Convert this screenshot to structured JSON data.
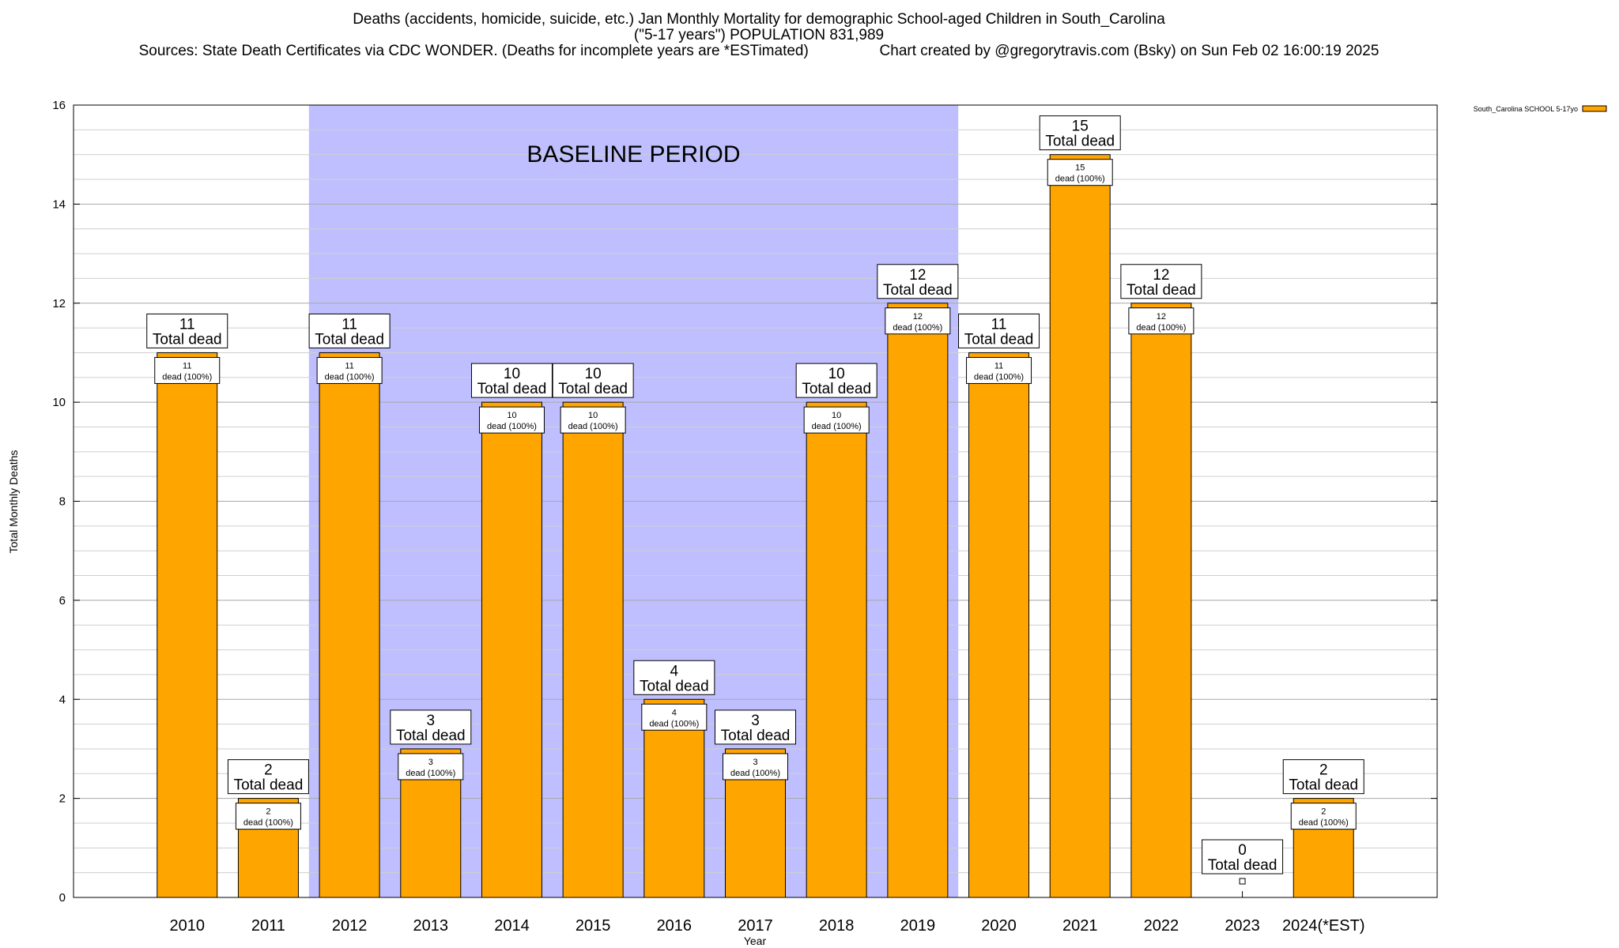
{
  "chart_data": {
    "type": "bar",
    "title_line1": "Deaths (accidents, homicide, suicide, etc.) Jan Monthly Mortality for demographic School-aged Children in South_Carolina",
    "title_line2": "(\"5-17 years\") POPULATION 831,989",
    "title_line3": "Sources: State Death Certificates via CDC WONDER. (Deaths for incomplete years are *ESTimated)                 Chart created by @gregorytravis.com (Bsky) on Sun Feb 02 16:00:19 2025",
    "xlabel": "Year",
    "ylabel": "Total Monthly Deaths",
    "ylim": [
      0,
      16
    ],
    "yticks": [
      0,
      2,
      4,
      6,
      8,
      10,
      12,
      14,
      16
    ],
    "grid": true,
    "legend_position": "top-right",
    "baseline_label": "BASELINE PERIOD",
    "baseline_range": [
      "2012",
      "2019"
    ],
    "total_label_suffix": "Total dead",
    "inner_label_suffix": "dead (100%)",
    "categories": [
      "2010",
      "2011",
      "2012",
      "2013",
      "2014",
      "2015",
      "2016",
      "2017",
      "2018",
      "2019",
      "2020",
      "2021",
      "2022",
      "2023",
      "2024(*EST)"
    ],
    "series": [
      {
        "name": "South_Carolina SCHOOL 5-17yo",
        "color": "#FFA500",
        "values": [
          11,
          2,
          11,
          3,
          10,
          10,
          4,
          3,
          10,
          12,
          11,
          15,
          12,
          0,
          2
        ]
      }
    ],
    "colors": {
      "bar": "#FFA500",
      "baseline_band": "#BFBFFF",
      "bar_edge": "#000000"
    }
  }
}
